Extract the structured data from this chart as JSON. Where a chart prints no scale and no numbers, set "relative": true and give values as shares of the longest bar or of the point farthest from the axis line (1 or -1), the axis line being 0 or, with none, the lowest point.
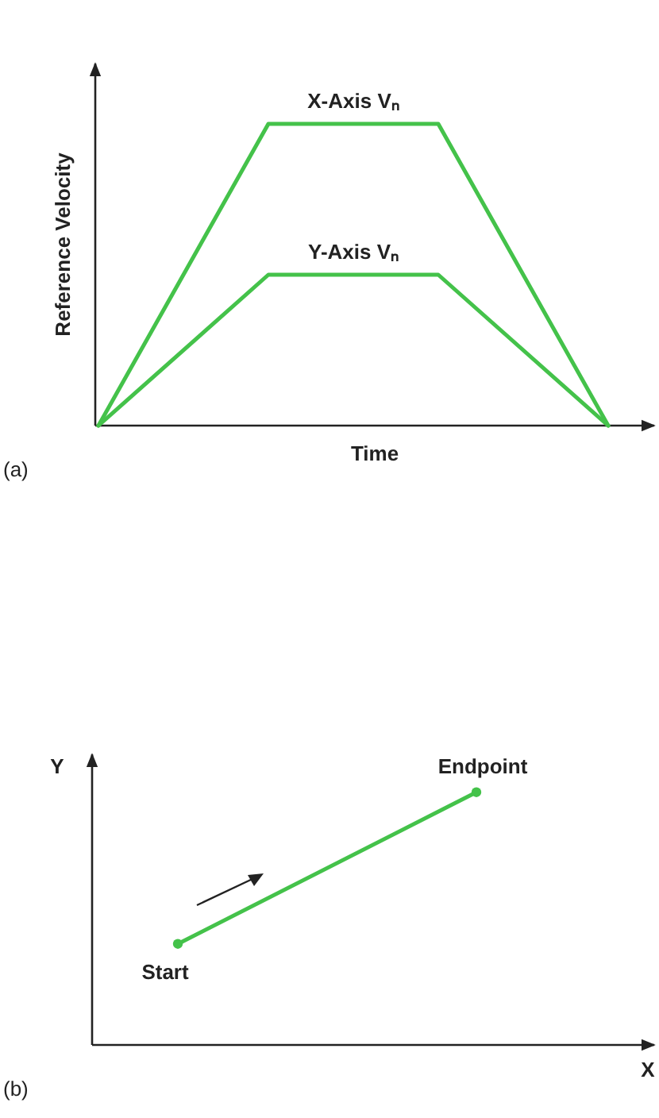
{
  "chart_data": [
    {
      "type": "line",
      "relative": true,
      "xlabel": "Time",
      "ylabel": "Reference Velocity",
      "categories": [
        null,
        null,
        null,
        null
      ],
      "series": [
        {
          "name": "X-Axis Vₙ",
          "color": "#44c24a",
          "values": [
            0,
            1,
            1,
            0
          ]
        },
        {
          "name": "Y-Axis Vₙ",
          "color": "#44c24a",
          "values": [
            0,
            0.5,
            0.5,
            0
          ]
        }
      ],
      "annotations": [
        "(a)"
      ]
    },
    {
      "type": "line",
      "relative": true,
      "xlabel": "X",
      "ylabel": "Y",
      "categories": [
        null,
        null
      ],
      "marker": "circle",
      "series": [
        {
          "color": "#44c24a",
          "values": [
            0.4,
            1
          ]
        }
      ],
      "annotations": [
        "(b)",
        {
          "text": "Start",
          "y": 0.4
        },
        {
          "text": "Endpoint",
          "y": 1
        }
      ]
    }
  ]
}
